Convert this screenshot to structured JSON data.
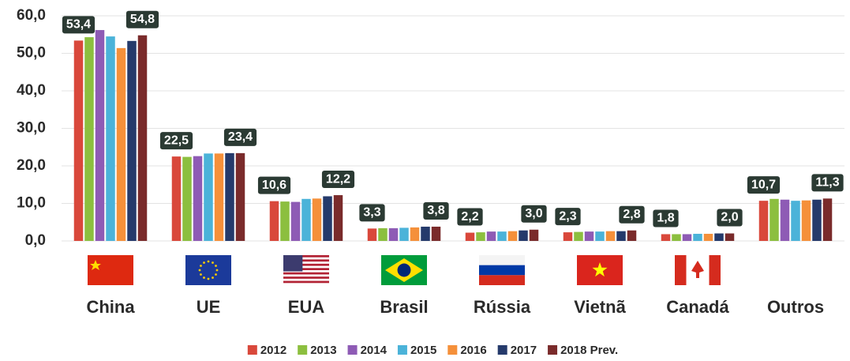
{
  "chart_data": {
    "type": "bar",
    "categories": [
      "China",
      "UE",
      "EUA",
      "Brasil",
      "Rússia",
      "Vietnã",
      "Canadá",
      "Outros"
    ],
    "series": [
      {
        "name": "2012",
        "color": "#d9483b",
        "values": [
          53.4,
          22.5,
          10.6,
          3.3,
          2.2,
          2.3,
          1.8,
          10.7
        ],
        "value_labels": [
          "53,4",
          "22,5",
          "10,6",
          "3,3",
          "2,2",
          "2,3",
          "1,8",
          "10,7"
        ]
      },
      {
        "name": "2013",
        "color": "#8cbf3f",
        "values": [
          54.3,
          22.4,
          10.5,
          3.4,
          2.3,
          2.4,
          1.8,
          11.2
        ]
      },
      {
        "name": "2014",
        "color": "#8e5bb5",
        "values": [
          56.2,
          22.6,
          10.4,
          3.4,
          2.5,
          2.5,
          1.8,
          11.0
        ]
      },
      {
        "name": "2015",
        "color": "#4bb3d9",
        "values": [
          54.5,
          23.3,
          11.2,
          3.5,
          2.5,
          2.5,
          1.9,
          10.7
        ]
      },
      {
        "name": "2016",
        "color": "#f5903a",
        "values": [
          51.4,
          23.3,
          11.3,
          3.6,
          2.6,
          2.6,
          1.9,
          10.8
        ]
      },
      {
        "name": "2017",
        "color": "#253a6b",
        "values": [
          53.3,
          23.4,
          11.9,
          3.8,
          2.8,
          2.6,
          2.0,
          11.0
        ]
      },
      {
        "name": "2018 Prev.",
        "color": "#7a2b2b",
        "values": [
          54.8,
          23.4,
          12.2,
          3.8,
          3.0,
          2.8,
          2.0,
          11.3
        ],
        "value_labels": [
          "54,8",
          "23,4",
          "12,2",
          "3,8",
          "3,0",
          "2,8",
          "2,0",
          "11,3"
        ]
      }
    ],
    "ylim": [
      0,
      60
    ],
    "yticks": [
      {
        "value": 0,
        "label": "0,0"
      },
      {
        "value": 10,
        "label": "10,0"
      },
      {
        "value": 20,
        "label": "20,0"
      },
      {
        "value": 30,
        "label": "30,0"
      },
      {
        "value": 40,
        "label": "40,0"
      },
      {
        "value": 50,
        "label": "50,0"
      },
      {
        "value": 60,
        "label": "60,0"
      }
    ],
    "grid": true
  }
}
